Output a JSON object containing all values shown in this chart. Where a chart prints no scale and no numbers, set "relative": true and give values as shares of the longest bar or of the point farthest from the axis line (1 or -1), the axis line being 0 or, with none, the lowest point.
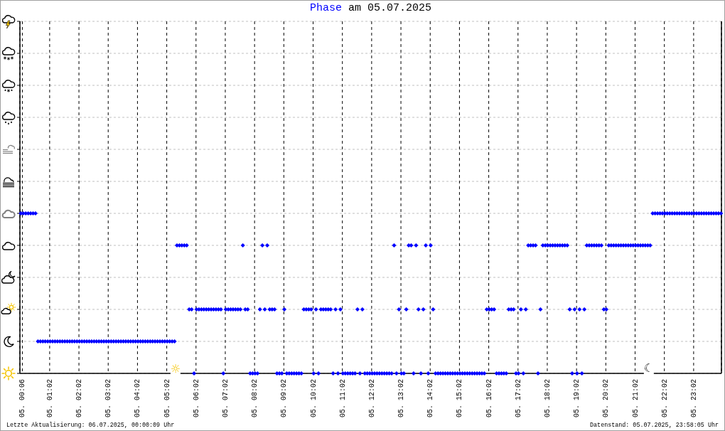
{
  "chart_data": {
    "type": "scatter",
    "title": "Phase am 05.07.2025",
    "annotations": [
      "Letzte Aktualisierung: 06.07.2025, 00:00:09 Uhr",
      "Datenstand: 05.07.2025, 23:58:05 Uhr",
      "☼",
      "☾"
    ],
    "x": [
      "2025-07-05T00:03",
      "2025-07-05T00:08",
      "2025-07-05T00:13",
      "2025-07-05T00:18",
      "2025-07-05T00:23",
      "2025-07-05T00:28",
      "2025-07-05T00:33",
      "2025-07-05T00:38",
      "2025-07-05T00:43",
      "2025-07-05T00:48",
      "2025-07-05T00:53",
      "2025-07-05T00:58",
      "2025-07-05T01:03",
      "2025-07-05T01:08",
      "2025-07-05T01:13",
      "2025-07-05T01:18",
      "2025-07-05T01:23",
      "2025-07-05T01:28",
      "2025-07-05T01:33",
      "2025-07-05T01:38",
      "2025-07-05T01:43",
      "2025-07-05T01:48",
      "2025-07-05T01:53",
      "2025-07-05T01:58",
      "2025-07-05T02:03",
      "2025-07-05T02:08",
      "2025-07-05T02:13",
      "2025-07-05T02:18",
      "2025-07-05T02:23",
      "2025-07-05T02:28",
      "2025-07-05T02:33",
      "2025-07-05T02:38",
      "2025-07-05T02:43",
      "2025-07-05T02:48",
      "2025-07-05T02:53",
      "2025-07-05T02:58",
      "2025-07-05T03:03",
      "2025-07-05T03:08",
      "2025-07-05T03:13",
      "2025-07-05T03:18",
      "2025-07-05T03:23",
      "2025-07-05T03:28",
      "2025-07-05T03:33",
      "2025-07-05T03:38",
      "2025-07-05T03:43",
      "2025-07-05T03:48",
      "2025-07-05T03:53",
      "2025-07-05T03:58",
      "2025-07-05T04:03",
      "2025-07-05T04:08",
      "2025-07-05T04:13",
      "2025-07-05T04:18",
      "2025-07-05T04:23",
      "2025-07-05T04:28",
      "2025-07-05T04:33",
      "2025-07-05T04:38",
      "2025-07-05T04:43",
      "2025-07-05T04:48",
      "2025-07-05T04:53",
      "2025-07-05T04:58",
      "2025-07-05T05:03",
      "2025-07-05T05:08",
      "2025-07-05T05:13",
      "2025-07-05T05:18",
      "2025-07-05T05:23",
      "2025-07-05T05:28",
      "2025-07-05T05:33",
      "2025-07-05T05:38",
      "2025-07-05T05:43",
      "2025-07-05T05:48",
      "2025-07-05T05:53",
      "2025-07-05T05:58",
      "2025-07-05T06:03",
      "2025-07-05T06:08",
      "2025-07-05T06:13",
      "2025-07-05T06:18",
      "2025-07-05T06:23",
      "2025-07-05T06:28",
      "2025-07-05T06:33",
      "2025-07-05T06:38",
      "2025-07-05T06:43",
      "2025-07-05T06:48",
      "2025-07-05T06:53",
      "2025-07-05T06:58",
      "2025-07-05T07:03",
      "2025-07-05T07:08",
      "2025-07-05T07:13",
      "2025-07-05T07:18",
      "2025-07-05T07:23",
      "2025-07-05T07:28",
      "2025-07-05T07:33",
      "2025-07-05T07:38",
      "2025-07-05T07:43",
      "2025-07-05T07:48",
      "2025-07-05T07:53",
      "2025-07-05T07:58",
      "2025-07-05T08:03",
      "2025-07-05T08:08",
      "2025-07-05T08:13",
      "2025-07-05T08:18",
      "2025-07-05T08:23",
      "2025-07-05T08:28",
      "2025-07-05T08:33",
      "2025-07-05T08:38",
      "2025-07-05T08:43",
      "2025-07-05T08:48",
      "2025-07-05T08:53",
      "2025-07-05T08:58",
      "2025-07-05T09:03",
      "2025-07-05T09:08",
      "2025-07-05T09:13",
      "2025-07-05T09:18",
      "2025-07-05T09:23",
      "2025-07-05T09:28",
      "2025-07-05T09:33",
      "2025-07-05T09:38",
      "2025-07-05T09:43",
      "2025-07-05T09:48",
      "2025-07-05T09:53",
      "2025-07-05T09:58",
      "2025-07-05T10:03",
      "2025-07-05T10:08",
      "2025-07-05T10:13",
      "2025-07-05T10:18",
      "2025-07-05T10:23",
      "2025-07-05T10:28",
      "2025-07-05T10:33",
      "2025-07-05T10:38",
      "2025-07-05T10:43",
      "2025-07-05T10:48",
      "2025-07-05T10:53",
      "2025-07-05T10:58",
      "2025-07-05T11:03",
      "2025-07-05T11:08",
      "2025-07-05T11:13",
      "2025-07-05T11:18",
      "2025-07-05T11:23",
      "2025-07-05T11:28",
      "2025-07-05T11:33",
      "2025-07-05T11:38",
      "2025-07-05T11:43",
      "2025-07-05T11:48",
      "2025-07-05T11:53",
      "2025-07-05T11:58",
      "2025-07-05T12:03",
      "2025-07-05T12:08",
      "2025-07-05T12:13",
      "2025-07-05T12:18",
      "2025-07-05T12:23",
      "2025-07-05T12:28",
      "2025-07-05T12:33",
      "2025-07-05T12:38",
      "2025-07-05T12:43",
      "2025-07-05T12:48",
      "2025-07-05T12:53",
      "2025-07-05T12:58",
      "2025-07-05T13:03",
      "2025-07-05T13:08",
      "2025-07-05T13:13",
      "2025-07-05T13:18",
      "2025-07-05T13:23",
      "2025-07-05T13:28",
      "2025-07-05T13:33",
      "2025-07-05T13:38",
      "2025-07-05T13:43",
      "2025-07-05T13:48",
      "2025-07-05T13:53",
      "2025-07-05T13:58",
      "2025-07-05T14:03",
      "2025-07-05T14:08",
      "2025-07-05T14:13",
      "2025-07-05T14:18",
      "2025-07-05T14:23",
      "2025-07-05T14:28",
      "2025-07-05T14:33",
      "2025-07-05T14:38",
      "2025-07-05T14:43",
      "2025-07-05T14:48",
      "2025-07-05T14:53",
      "2025-07-05T14:58",
      "2025-07-05T15:03",
      "2025-07-05T15:08",
      "2025-07-05T15:13",
      "2025-07-05T15:18",
      "2025-07-05T15:23",
      "2025-07-05T15:28",
      "2025-07-05T15:33",
      "2025-07-05T15:38",
      "2025-07-05T15:43",
      "2025-07-05T15:48",
      "2025-07-05T15:53",
      "2025-07-05T15:58",
      "2025-07-05T16:03",
      "2025-07-05T16:08",
      "2025-07-05T16:13",
      "2025-07-05T16:18",
      "2025-07-05T16:23",
      "2025-07-05T16:28",
      "2025-07-05T16:33",
      "2025-07-05T16:38",
      "2025-07-05T16:43",
      "2025-07-05T16:48",
      "2025-07-05T16:53",
      "2025-07-05T16:58",
      "2025-07-05T17:03",
      "2025-07-05T17:08",
      "2025-07-05T17:13",
      "2025-07-05T17:18",
      "2025-07-05T17:23",
      "2025-07-05T17:28",
      "2025-07-05T17:33",
      "2025-07-05T17:38",
      "2025-07-05T17:43",
      "2025-07-05T17:48",
      "2025-07-05T17:53",
      "2025-07-05T17:58",
      "2025-07-05T18:03",
      "2025-07-05T18:08",
      "2025-07-05T18:13",
      "2025-07-05T18:18",
      "2025-07-05T18:23",
      "2025-07-05T18:28",
      "2025-07-05T18:33",
      "2025-07-05T18:38",
      "2025-07-05T18:43",
      "2025-07-05T18:48",
      "2025-07-05T18:53",
      "2025-07-05T18:58",
      "2025-07-05T19:03",
      "2025-07-05T19:08",
      "2025-07-05T19:13",
      "2025-07-05T19:18",
      "2025-07-05T19:23",
      "2025-07-05T19:28",
      "2025-07-05T19:33",
      "2025-07-05T19:38",
      "2025-07-05T19:43",
      "2025-07-05T19:48",
      "2025-07-05T19:53",
      "2025-07-05T19:58",
      "2025-07-05T20:03",
      "2025-07-05T20:08",
      "2025-07-05T20:13",
      "2025-07-05T20:18",
      "2025-07-05T20:23",
      "2025-07-05T20:28",
      "2025-07-05T20:33",
      "2025-07-05T20:38",
      "2025-07-05T20:43",
      "2025-07-05T20:48",
      "2025-07-05T20:53",
      "2025-07-05T20:58",
      "2025-07-05T21:03",
      "2025-07-05T21:08",
      "2025-07-05T21:13",
      "2025-07-05T21:18",
      "2025-07-05T21:23",
      "2025-07-05T21:28",
      "2025-07-05T21:33",
      "2025-07-05T21:38",
      "2025-07-05T21:43",
      "2025-07-05T21:48",
      "2025-07-05T21:53",
      "2025-07-05T21:58",
      "2025-07-05T22:03",
      "2025-07-05T22:08",
      "2025-07-05T22:13",
      "2025-07-05T22:18",
      "2025-07-05T22:23",
      "2025-07-05T22:28",
      "2025-07-05T22:33",
      "2025-07-05T22:38",
      "2025-07-05T22:43",
      "2025-07-05T22:48",
      "2025-07-05T22:53",
      "2025-07-05T22:58",
      "2025-07-05T23:03",
      "2025-07-05T23:08",
      "2025-07-05T23:13",
      "2025-07-05T23:18",
      "2025-07-05T23:23",
      "2025-07-05T23:28",
      "2025-07-05T23:33",
      "2025-07-05T23:38",
      "2025-07-05T23:43",
      "2025-07-05T23:48",
      "2025-07-05T23:53",
      "2025-07-05T23:58"
    ],
    "series": [
      {
        "color": "#0000ff",
        "values": [
          1,
          1,
          1,
          1,
          1,
          1,
          1,
          0.2,
          0.2,
          0.2,
          0.2,
          0.2,
          0.2,
          0.2,
          0.2,
          0.2,
          0.2,
          0.2,
          0.2,
          0.2,
          0.2,
          0.2,
          0.2,
          0.2,
          0.2,
          0.2,
          0.2,
          0.2,
          0.2,
          0.2,
          0.2,
          0.2,
          0.2,
          0.2,
          0.2,
          0.2,
          0.2,
          0.2,
          0.2,
          0.2,
          0.2,
          0.2,
          0.2,
          0.2,
          0.2,
          0.2,
          0.2,
          0.2,
          0.2,
          0.2,
          0.2,
          0.2,
          0.2,
          0.2,
          0.2,
          0.2,
          0.2,
          0.2,
          0.2,
          0.2,
          0.2,
          0.2,
          0.2,
          0.2,
          0.8,
          0.8,
          0.8,
          0.8,
          0.8,
          0.4,
          0.4,
          0,
          0.4,
          0.4,
          0.4,
          0.4,
          0.4,
          0.4,
          0.4,
          0.4,
          0.4,
          0.4,
          0.4,
          0,
          0.4,
          0.4,
          0.4,
          0.4,
          0.4,
          0.4,
          0.4,
          0.8,
          0.4,
          0.4,
          0,
          0,
          0,
          0,
          0.4,
          0.8,
          0.4,
          0.8,
          0.4,
          0.4,
          0.4,
          0,
          0,
          0,
          0.4,
          0,
          0,
          0,
          0,
          0,
          0,
          0,
          0.4,
          0.4,
          0.4,
          0.4,
          0,
          0.4,
          0,
          0.4,
          0.4,
          0.4,
          0.4,
          0.4,
          0,
          0.4,
          0,
          0.4,
          0,
          0,
          0,
          0,
          0,
          0,
          0.4,
          0,
          0.4,
          0,
          0,
          0,
          0,
          0,
          0,
          0,
          0,
          0,
          0,
          0,
          0,
          0.8,
          0,
          0.4,
          0,
          0,
          0.4,
          0.8,
          0.8,
          0,
          0.8,
          0.4,
          0,
          0.4,
          0.8,
          0,
          0.8,
          0.4,
          0,
          0,
          0,
          0,
          0,
          0,
          0,
          0,
          0,
          0,
          0,
          0,
          0,
          0,
          0,
          0,
          0,
          0,
          0,
          0,
          0,
          0.4,
          0.4,
          0.4,
          0.4,
          0,
          0,
          0,
          0,
          0,
          0.4,
          0.4,
          0.4,
          0,
          0,
          0.4,
          0,
          0.4,
          0.8,
          0.8,
          0.8,
          0.8,
          0,
          0.4,
          0.8,
          0.8,
          0.8,
          0.8,
          0.8,
          0.8,
          0.8,
          0.8,
          0.8,
          0.8,
          0.8,
          0.4,
          0,
          0.4,
          0,
          0.4,
          0,
          0.4,
          0.8,
          0.8,
          0.8,
          0.8,
          0.8,
          0.8,
          0.8,
          0.4,
          0.4,
          0.8,
          0.8,
          0.8,
          0.8,
          0.8,
          0.8,
          0.8,
          0.8,
          0.8,
          0.8,
          0.8,
          0.8,
          0.8,
          0.8,
          0.8,
          0.8,
          0.8,
          0.8,
          1,
          1,
          1,
          1,
          1,
          1,
          1,
          1,
          1,
          1,
          1,
          1,
          1,
          1,
          1,
          1,
          1,
          1,
          1,
          1,
          1,
          1,
          1,
          1,
          1,
          1,
          1,
          1,
          1
        ]
      }
    ],
    "xlim": [
      "2025-07-05T00:01",
      "2025-07-05T23:59"
    ],
    "xticks": [
      {
        "value": "2025-07-05T00:06",
        "label": "05. 00:06"
      },
      {
        "value": "2025-07-05T01:02",
        "label": "05. 01:02"
      },
      {
        "value": "2025-07-05T02:02",
        "label": "05. 02:02"
      },
      {
        "value": "2025-07-05T03:02",
        "label": "05. 03:02"
      },
      {
        "value": "2025-07-05T04:02",
        "label": "05. 04:02"
      },
      {
        "value": "2025-07-05T05:02",
        "label": "05. 05:02"
      },
      {
        "value": "2025-07-05T06:02",
        "label": "05. 06:02"
      },
      {
        "value": "2025-07-05T07:02",
        "label": "05. 07:02"
      },
      {
        "value": "2025-07-05T08:02",
        "label": "05. 08:02"
      },
      {
        "value": "2025-07-05T09:02",
        "label": "05. 09:02"
      },
      {
        "value": "2025-07-05T10:02",
        "label": "05. 10:02"
      },
      {
        "value": "2025-07-05T11:02",
        "label": "05. 11:02"
      },
      {
        "value": "2025-07-05T12:02",
        "label": "05. 12:02"
      },
      {
        "value": "2025-07-05T13:02",
        "label": "05. 13:02"
      },
      {
        "value": "2025-07-05T14:02",
        "label": "05. 14:02"
      },
      {
        "value": "2025-07-05T15:02",
        "label": "05. 15:02"
      },
      {
        "value": "2025-07-05T16:02",
        "label": "05. 16:02"
      },
      {
        "value": "2025-07-05T17:02",
        "label": "05. 17:02"
      },
      {
        "value": "2025-07-05T18:02",
        "label": "05. 18:02"
      },
      {
        "value": "2025-07-05T19:02",
        "label": "05. 19:02"
      },
      {
        "value": "2025-07-05T20:02",
        "label": "05. 20:02"
      },
      {
        "value": "2025-07-05T21:02",
        "label": "05. 21:02"
      },
      {
        "value": "2025-07-05T22:02",
        "label": "05. 22:02"
      },
      {
        "value": "2025-07-05T23:02",
        "label": "05. 23:02"
      }
    ],
    "relative": true,
    "tick_labels": "x",
    "grid": true,
    "marker": "diamond"
  }
}
